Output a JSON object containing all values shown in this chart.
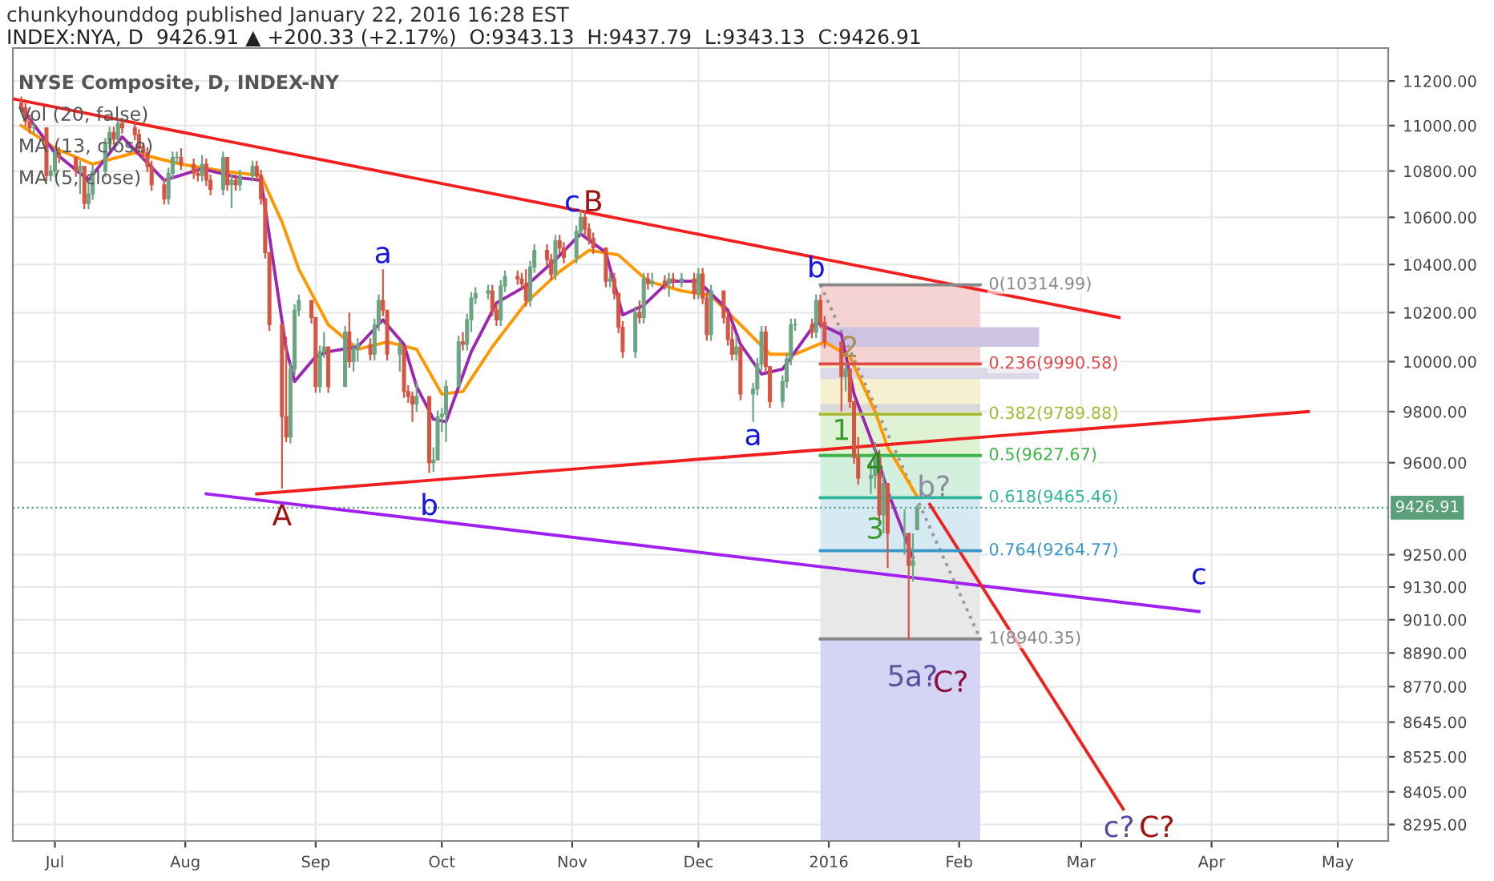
{
  "chart_data": {
    "type": "candlestick",
    "title": "INDEX:NYA, D  9426.91 ▲ +200.33 (+2.17%)  O:9343.13  H:9437.79  L:9343.13  C:9426.91",
    "subtitle": "NYSE Composite, D, INDEX-NY",
    "x": [
      "2015-06-23",
      "2015-06-24",
      "2015-06-25",
      "2015-06-26",
      "2015-06-29",
      "2015-06-30",
      "2015-07-01",
      "2015-07-02",
      "2015-07-06",
      "2015-07-07",
      "2015-07-08",
      "2015-07-09",
      "2015-07-10",
      "2015-07-13",
      "2015-07-14",
      "2015-07-15",
      "2015-07-16",
      "2015-07-17",
      "2015-07-20",
      "2015-07-21",
      "2015-07-22",
      "2015-07-23",
      "2015-07-24",
      "2015-07-27",
      "2015-07-28",
      "2015-07-29",
      "2015-07-30",
      "2015-07-31",
      "2015-08-03",
      "2015-08-04",
      "2015-08-05",
      "2015-08-06",
      "2015-08-07",
      "2015-08-10",
      "2015-08-11",
      "2015-08-12",
      "2015-08-13",
      "2015-08-14",
      "2015-08-17",
      "2015-08-18",
      "2015-08-19",
      "2015-08-20",
      "2015-08-21",
      "2015-08-24",
      "2015-08-25",
      "2015-08-26",
      "2015-08-27",
      "2015-08-28",
      "2015-08-31",
      "2015-09-01",
      "2015-09-02",
      "2015-09-03",
      "2015-09-04",
      "2015-09-08",
      "2015-09-09",
      "2015-09-10",
      "2015-09-11",
      "2015-09-14",
      "2015-09-15",
      "2015-09-16",
      "2015-09-17",
      "2015-09-18",
      "2015-09-21",
      "2015-09-22",
      "2015-09-23",
      "2015-09-24",
      "2015-09-25",
      "2015-09-28",
      "2015-09-29",
      "2015-09-30",
      "2015-10-01",
      "2015-10-02",
      "2015-10-05",
      "2015-10-06",
      "2015-10-07",
      "2015-10-08",
      "2015-10-09",
      "2015-10-12",
      "2015-10-13",
      "2015-10-14",
      "2015-10-15",
      "2015-10-16",
      "2015-10-19",
      "2015-10-20",
      "2015-10-21",
      "2015-10-22",
      "2015-10-23",
      "2015-10-26",
      "2015-10-27",
      "2015-10-28",
      "2015-10-29",
      "2015-10-30",
      "2015-11-02",
      "2015-11-03",
      "2015-11-04",
      "2015-11-05",
      "2015-11-06",
      "2015-11-09",
      "2015-11-10",
      "2015-11-11",
      "2015-11-12",
      "2015-11-13",
      "2015-11-16",
      "2015-11-17",
      "2015-11-18",
      "2015-11-19",
      "2015-11-20",
      "2015-11-23",
      "2015-11-24",
      "2015-11-25",
      "2015-11-27",
      "2015-11-30",
      "2015-12-01",
      "2015-12-02",
      "2015-12-03",
      "2015-12-04",
      "2015-12-07",
      "2015-12-08",
      "2015-12-09",
      "2015-12-10",
      "2015-12-11",
      "2015-12-14",
      "2015-12-15",
      "2015-12-16",
      "2015-12-17",
      "2015-12-18",
      "2015-12-21",
      "2015-12-22",
      "2015-12-23",
      "2015-12-24",
      "2015-12-28",
      "2015-12-29",
      "2015-12-30",
      "2015-12-31",
      "2016-01-04",
      "2016-01-05",
      "2016-01-06",
      "2016-01-07",
      "2016-01-08",
      "2016-01-11",
      "2016-01-12",
      "2016-01-13",
      "2016-01-14",
      "2016-01-15",
      "2016-01-19",
      "2016-01-20",
      "2016-01-21",
      "2016-01-22"
    ],
    "ohlc": [
      [
        11100,
        11130,
        11060,
        11080
      ],
      [
        11080,
        11100,
        10995,
        11020
      ],
      [
        11020,
        11050,
        10965,
        10990
      ],
      [
        10990,
        11015,
        10965,
        10990
      ],
      [
        10990,
        10990,
        10755,
        10780
      ],
      [
        10780,
        10825,
        10755,
        10800
      ],
      [
        10800,
        10905,
        10775,
        10880
      ],
      [
        10880,
        10905,
        10835,
        10860
      ],
      [
        10860,
        10860,
        10775,
        10800
      ],
      [
        10800,
        10845,
        10700,
        10820
      ],
      [
        10820,
        10820,
        10635,
        10660
      ],
      [
        10660,
        10760,
        10635,
        10700
      ],
      [
        10700,
        10825,
        10675,
        10800
      ],
      [
        10800,
        10945,
        10775,
        10920
      ],
      [
        10920,
        10995,
        10895,
        10970
      ],
      [
        10970,
        10995,
        10915,
        10940
      ],
      [
        10940,
        11035,
        10915,
        11010
      ],
      [
        11010,
        11035,
        10965,
        10990
      ],
      [
        10990,
        11015,
        10935,
        10960
      ],
      [
        10960,
        10985,
        10875,
        10900
      ],
      [
        10900,
        10925,
        10855,
        10880
      ],
      [
        10880,
        10905,
        10795,
        10820
      ],
      [
        10820,
        10845,
        10715,
        10740
      ],
      [
        10740,
        10765,
        10655,
        10680
      ],
      [
        10680,
        10815,
        10655,
        10790
      ],
      [
        10790,
        10885,
        10765,
        10860
      ],
      [
        10860,
        10885,
        10835,
        10860
      ],
      [
        10860,
        10900,
        10805,
        10830
      ],
      [
        10830,
        10855,
        10765,
        10790
      ],
      [
        10790,
        10815,
        10755,
        10780
      ],
      [
        10780,
        10870,
        10755,
        10830
      ],
      [
        10830,
        10855,
        10735,
        10760
      ],
      [
        10760,
        10785,
        10695,
        10720
      ],
      [
        10720,
        10885,
        10695,
        10860
      ],
      [
        10860,
        10860,
        10715,
        10740
      ],
      [
        10740,
        10785,
        10640,
        10760
      ],
      [
        10760,
        10785,
        10715,
        10740
      ],
      [
        10740,
        10805,
        10715,
        10780
      ],
      [
        10780,
        10845,
        10755,
        10820
      ],
      [
        10820,
        10845,
        10755,
        10780
      ],
      [
        10780,
        10805,
        10655,
        10680
      ],
      [
        10680,
        10680,
        10425,
        10450
      ],
      [
        10450,
        10450,
        10125,
        10150
      ],
      [
        10150,
        10150,
        9500,
        9780
      ],
      [
        9780,
        10100,
        9680,
        9700
      ],
      [
        9700,
        9995,
        9675,
        9970
      ],
      [
        9970,
        10235,
        9945,
        10210
      ],
      [
        10210,
        10275,
        10185,
        10250
      ],
      [
        10250,
        10250,
        10155,
        10180
      ],
      [
        10180,
        10180,
        9875,
        9900
      ],
      [
        9900,
        10065,
        9875,
        10040
      ],
      [
        10040,
        10120,
        10015,
        10060
      ],
      [
        10060,
        10060,
        9875,
        9900
      ],
      [
        9900,
        10145,
        9900,
        10120
      ],
      [
        10120,
        10200,
        9975,
        10000
      ],
      [
        10000,
        10075,
        9960,
        10050
      ],
      [
        10050,
        10095,
        10000,
        10070
      ],
      [
        10070,
        10095,
        10005,
        10030
      ],
      [
        10030,
        10175,
        10005,
        10150
      ],
      [
        10150,
        10275,
        10125,
        10250
      ],
      [
        10250,
        10380,
        10185,
        10210
      ],
      [
        10210,
        10210,
        10005,
        10030
      ],
      [
        10030,
        10085,
        9960,
        10060
      ],
      [
        10060,
        10060,
        9855,
        9880
      ],
      [
        9880,
        9905,
        9835,
        9860
      ],
      [
        9860,
        9880,
        9760,
        9830
      ],
      [
        9830,
        9920,
        9800,
        9860
      ],
      [
        9860,
        9860,
        9560,
        9600
      ],
      [
        9600,
        9660,
        9565,
        9610
      ],
      [
        9610,
        9805,
        9610,
        9780
      ],
      [
        9780,
        9815,
        9720,
        9790
      ],
      [
        9790,
        9925,
        9680,
        9900
      ],
      [
        9900,
        10105,
        9900,
        10080
      ],
      [
        10080,
        10120,
        10045,
        10070
      ],
      [
        10070,
        10195,
        10045,
        10170
      ],
      [
        10170,
        10285,
        10120,
        10260
      ],
      [
        10260,
        10305,
        10235,
        10280
      ],
      [
        10280,
        10315,
        10255,
        10290
      ],
      [
        10290,
        10315,
        10185,
        10210
      ],
      [
        10210,
        10235,
        10145,
        10170
      ],
      [
        10170,
        10335,
        10145,
        10310
      ],
      [
        10310,
        10375,
        10285,
        10350
      ],
      [
        10350,
        10375,
        10315,
        10340
      ],
      [
        10340,
        10365,
        10295,
        10320
      ],
      [
        10320,
        10380,
        10225,
        10250
      ],
      [
        10250,
        10415,
        10225,
        10390
      ],
      [
        10390,
        10485,
        10365,
        10460
      ],
      [
        10460,
        10485,
        10395,
        10420
      ],
      [
        10420,
        10445,
        10335,
        10360
      ],
      [
        10360,
        10525,
        10335,
        10500
      ],
      [
        10500,
        10525,
        10445,
        10470
      ],
      [
        10470,
        10495,
        10405,
        10430
      ],
      [
        10430,
        10565,
        10405,
        10540
      ],
      [
        10540,
        10630,
        10515,
        10600
      ],
      [
        10600,
        10625,
        10525,
        10550
      ],
      [
        10550,
        10575,
        10485,
        10510
      ],
      [
        10510,
        10535,
        10445,
        10470
      ],
      [
        10470,
        10470,
        10305,
        10330
      ],
      [
        10330,
        10365,
        10305,
        10340
      ],
      [
        10340,
        10365,
        10255,
        10280
      ],
      [
        10280,
        10280,
        10115,
        10140
      ],
      [
        10140,
        10165,
        10015,
        10040
      ],
      [
        10040,
        10225,
        10015,
        10200
      ],
      [
        10200,
        10250,
        10155,
        10180
      ],
      [
        10180,
        10365,
        10155,
        10340
      ],
      [
        10340,
        10365,
        10295,
        10320
      ],
      [
        10320,
        10365,
        10305,
        10330
      ],
      [
        10330,
        10355,
        10295,
        10320
      ],
      [
        10320,
        10365,
        10265,
        10340
      ],
      [
        10340,
        10365,
        10305,
        10330
      ],
      [
        10330,
        10365,
        10305,
        10340
      ],
      [
        10340,
        10365,
        10255,
        10280
      ],
      [
        10280,
        10385,
        10255,
        10360
      ],
      [
        10360,
        10385,
        10235,
        10260
      ],
      [
        10260,
        10285,
        10085,
        10110
      ],
      [
        10110,
        10315,
        10085,
        10290
      ],
      [
        10290,
        10290,
        10155,
        10180
      ],
      [
        10180,
        10205,
        10065,
        10090
      ],
      [
        10090,
        10150,
        10005,
        10030
      ],
      [
        10030,
        10105,
        10005,
        10060
      ],
      [
        10060,
        10060,
        9845,
        9870
      ],
      [
        9870,
        9915,
        9760,
        9890
      ],
      [
        9890,
        10015,
        9865,
        9990
      ],
      [
        9990,
        10145,
        9965,
        10120
      ],
      [
        10120,
        10145,
        9955,
        9980
      ],
      [
        9980,
        9980,
        9815,
        9840
      ],
      [
        9840,
        9945,
        9815,
        9920
      ],
      [
        9920,
        10035,
        9895,
        10010
      ],
      [
        10010,
        10175,
        9985,
        10150
      ],
      [
        10150,
        10175,
        10125,
        10150
      ],
      [
        10150,
        10175,
        10095,
        10120
      ],
      [
        10120,
        10275,
        10095,
        10250
      ],
      [
        10250,
        10275,
        10135,
        10160
      ],
      [
        10160,
        10185,
        10055,
        10080
      ],
      [
        10080,
        10080,
        9800,
        9940
      ],
      [
        9940,
        9995,
        9880,
        9970
      ],
      [
        9970,
        9970,
        9815,
        9840
      ],
      [
        9840,
        9840,
        9595,
        9620
      ],
      [
        9620,
        9700,
        9515,
        9540
      ],
      [
        9540,
        9600,
        9480,
        9550
      ],
      [
        9550,
        9680,
        9500,
        9620
      ],
      [
        9620,
        9650,
        9375,
        9400
      ],
      [
        9400,
        9560,
        9330,
        9520
      ],
      [
        9520,
        9520,
        9200,
        9330
      ],
      [
        9330,
        9420,
        9250,
        9330
      ],
      [
        9330,
        9330,
        8940,
        9210
      ],
      [
        9210,
        9330,
        9150,
        9226.58
      ],
      [
        9343.13,
        9437.79,
        9343.13,
        9426.91
      ]
    ],
    "series": [
      {
        "type": "line",
        "color": "#999999",
        "line_style": "dotted",
        "x": [
          "2015-12-30",
          "2016-02-06"
        ],
        "values": [
          10314.99,
          8940.35
        ]
      },
      {
        "type": "line",
        "color": "#ff9800",
        "x": [
          "2015-06-23",
          "2015-07-01",
          "2015-07-10",
          "2015-07-20",
          "2015-07-31",
          "2015-08-10",
          "2015-08-19",
          "2015-08-24",
          "2015-08-28",
          "2015-09-04",
          "2015-09-11",
          "2015-09-18",
          "2015-09-25",
          "2015-10-01",
          "2015-10-06",
          "2015-10-13",
          "2015-10-21",
          "2015-10-29",
          "2015-11-05",
          "2015-11-12",
          "2015-11-19",
          "2015-11-27",
          "2015-12-04",
          "2015-12-11",
          "2015-12-18",
          "2015-12-24",
          "2015-12-31",
          "2016-01-06",
          "2016-01-12",
          "2016-01-15",
          "2016-01-22"
        ],
        "values": [
          11000,
          10900,
          10830,
          10880,
          10830,
          10800,
          10780,
          10580,
          10380,
          10150,
          10050,
          10080,
          10050,
          9870,
          9880,
          10060,
          10240,
          10370,
          10460,
          10440,
          10330,
          10290,
          10270,
          10150,
          10030,
          10030,
          10080,
          10020,
          9800,
          9660,
          9470
        ]
      },
      {
        "type": "line",
        "color": "#9c27b0",
        "x": [
          "2015-06-23",
          "2015-07-01",
          "2015-07-09",
          "2015-07-17",
          "2015-07-27",
          "2015-08-05",
          "2015-08-14",
          "2015-08-19",
          "2015-08-21",
          "2015-08-25",
          "2015-08-27",
          "2015-09-01",
          "2015-09-04",
          "2015-09-11",
          "2015-09-17",
          "2015-09-22",
          "2015-09-25",
          "2015-09-29",
          "2015-10-02",
          "2015-10-08",
          "2015-10-14",
          "2015-10-21",
          "2015-10-28",
          "2015-11-03",
          "2015-11-09",
          "2015-11-13",
          "2015-11-18",
          "2015-11-24",
          "2015-12-01",
          "2015-12-08",
          "2015-12-11",
          "2015-12-16",
          "2015-12-21",
          "2015-12-29",
          "2016-01-04",
          "2016-01-07",
          "2016-01-12",
          "2016-01-15",
          "2016-01-21"
        ],
        "values": [
          11080,
          10880,
          10760,
          10950,
          10760,
          10810,
          10770,
          10760,
          10520,
          10050,
          9920,
          10020,
          10040,
          10060,
          10170,
          10070,
          9900,
          9770,
          9760,
          10040,
          10240,
          10310,
          10420,
          10530,
          10450,
          10190,
          10230,
          10330,
          10330,
          10210,
          10070,
          9950,
          9970,
          10160,
          10110,
          9870,
          9650,
          9490,
          9240
        ]
      },
      {
        "type": "line",
        "color": "#f02020",
        "x": [
          "2015-06-21",
          "2016-03-10"
        ],
        "values": [
          11120,
          10180
        ]
      },
      {
        "type": "line",
        "color": "#f02020",
        "x": [
          "2015-08-18",
          "2016-04-24"
        ],
        "values": [
          9480,
          9800
        ]
      },
      {
        "type": "line",
        "color": "#a020f0",
        "x": [
          "2015-08-06",
          "2016-03-29"
        ],
        "values": [
          9480,
          9040
        ]
      },
      {
        "type": "line",
        "color": "#f02020",
        "x": [
          "2016-01-25",
          "2016-03-11"
        ],
        "values": [
          9440,
          8347
        ]
      }
    ],
    "annotations": [
      "chunkyhounddog published January 22, 2016 16:28 EST",
      "Vol (20, false)",
      "MA (13, close)",
      "MA (5, close)",
      "c",
      "B",
      "a",
      "A",
      "b",
      "a",
      "b",
      "1",
      "2",
      "3",
      "4",
      "5",
      "a?",
      "C?",
      "b?",
      "c",
      "c?",
      "C?"
    ],
    "ref_lines": [
      {
        "axis": "y",
        "value": 9426.91,
        "label": "9426.91",
        "color": "#5ba07a",
        "line_style": "dotted"
      },
      {
        "axis": "y",
        "value": 10314.99,
        "label": "0(10314.99)",
        "color": "#888888"
      },
      {
        "axis": "y",
        "value": 9990.58,
        "label": "0.236(9990.58)",
        "color": "#e04a4a"
      },
      {
        "axis": "y",
        "value": 9789.88,
        "label": "0.382(9789.88)",
        "color": "#a8b838"
      },
      {
        "axis": "y",
        "value": 9627.67,
        "label": "0.5(9627.67)",
        "color": "#40b44a"
      },
      {
        "axis": "y",
        "value": 9465.46,
        "label": "0.618(9465.46)",
        "color": "#30b49a"
      },
      {
        "axis": "y",
        "value": 9264.77,
        "label": "0.764(9264.77)",
        "color": "#3a96c8"
      },
      {
        "axis": "y",
        "value": 8940.35,
        "label": "1(8940.35)",
        "color": "#888888"
      }
    ],
    "bands": [
      {
        "axis": "y",
        "from": 9990.58,
        "to": 10314.99,
        "color": "#f6d3d3"
      },
      {
        "axis": "y",
        "from": 9789.88,
        "to": 9990.58,
        "color": "#f6f1d0"
      },
      {
        "axis": "y",
        "from": 9627.67,
        "to": 9789.88,
        "color": "#dff2d3"
      },
      {
        "axis": "y",
        "from": 9465.46,
        "to": 9627.67,
        "color": "#d3f0de"
      },
      {
        "axis": "y",
        "from": 9264.77,
        "to": 9465.46,
        "color": "#d6eaf3"
      },
      {
        "axis": "y",
        "from": 8940.35,
        "to": 9264.77,
        "color": "#e8e8e8"
      },
      {
        "axis": "y",
        "from": 8240,
        "to": 8940.35,
        "color": "#d4d4f4"
      },
      {
        "axis": "y",
        "from": 10060,
        "to": 10140,
        "color": "#cdc3e3"
      },
      {
        "axis": "y",
        "from": 9930,
        "to": 9975,
        "color": "#dcd8e8"
      },
      {
        "axis": "y",
        "from": 9800,
        "to": 9830,
        "color": "#d8d8d8"
      }
    ],
    "log": "y",
    "grid": true,
    "xlim": [
      "2015-06-21",
      "2016-05-13"
    ],
    "xticks": [
      {
        "value": "2015-07-01",
        "label": "Jul"
      },
      {
        "value": "2015-08-01",
        "label": "Aug"
      },
      {
        "value": "2015-09-01",
        "label": "Sep"
      },
      {
        "value": "2015-10-01",
        "label": "Oct"
      },
      {
        "value": "2015-11-01",
        "label": "Nov"
      },
      {
        "value": "2015-12-01",
        "label": "Dec"
      },
      {
        "value": "2016-01-01",
        "label": "2016"
      },
      {
        "value": "2016-02-01",
        "label": "Feb"
      },
      {
        "value": "2016-03-01",
        "label": "Mar"
      },
      {
        "value": "2016-04-01",
        "label": "Apr"
      },
      {
        "value": "2016-05-01",
        "label": "May"
      }
    ],
    "ylim": [
      8240,
      11350
    ],
    "yticks": [
      {
        "value": 11200,
        "label": "11200.00"
      },
      {
        "value": 11000,
        "label": "11000.00"
      },
      {
        "value": 10800,
        "label": "10800.00"
      },
      {
        "value": 10600,
        "label": "10600.00"
      },
      {
        "value": 10400,
        "label": "10400.00"
      },
      {
        "value": 10200,
        "label": "10200.00"
      },
      {
        "value": 10000,
        "label": "10000.00"
      },
      {
        "value": 9800,
        "label": "9800.00"
      },
      {
        "value": 9600,
        "label": "9600.00"
      },
      {
        "value": 9250,
        "label": "9250.00"
      },
      {
        "value": 9130,
        "label": "9130.00"
      },
      {
        "value": 9010,
        "label": "9010.00"
      },
      {
        "value": 8890,
        "label": "8890.00"
      },
      {
        "value": 8770,
        "label": "8770.00"
      },
      {
        "value": 8645,
        "label": "8645.00"
      },
      {
        "value": 8525,
        "label": "8525.00"
      },
      {
        "value": 8405,
        "label": "8405.00"
      },
      {
        "value": 8295,
        "label": "8295.00"
      }
    ]
  }
}
